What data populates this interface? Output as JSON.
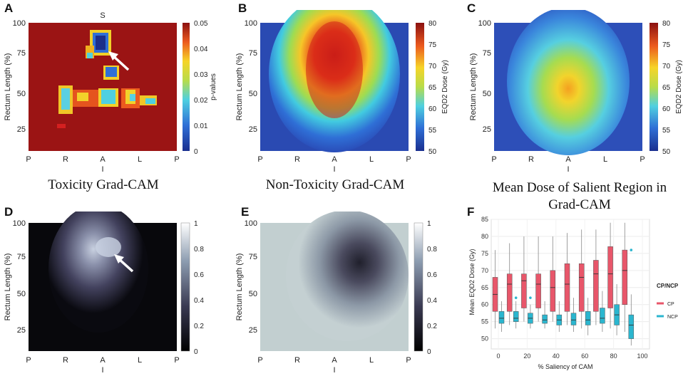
{
  "panels": {
    "A": {
      "label": "A",
      "caption": "Toxicity Grad-CAM",
      "cbar_title": "p-values",
      "cbar_ticks": [
        "0.05",
        "0.04",
        "0.03",
        "0.02",
        "0.01",
        "0"
      ]
    },
    "B": {
      "label": "B",
      "caption": "Non-Toxicity Grad-CAM",
      "cbar_title": "EQD2 Dose (Gy)",
      "cbar_ticks": [
        "80",
        "75",
        "70",
        "65",
        "60",
        "55",
        "50"
      ]
    },
    "C": {
      "label": "C",
      "caption_line1": "Mean Dose of Salient Region in",
      "caption_line2": "Grad-CAM",
      "cbar_title": "EQD2 Dose (Gy)",
      "cbar_ticks": [
        "80",
        "75",
        "70",
        "65",
        "60",
        "55",
        "50"
      ]
    },
    "D": {
      "label": "D",
      "cbar_ticks": [
        "1",
        "0.8",
        "0.6",
        "0.4",
        "0.2",
        "0"
      ]
    },
    "E": {
      "label": "E",
      "cbar_ticks": [
        "1",
        "0.8",
        "0.6",
        "0.4",
        "0.2",
        "0"
      ]
    },
    "F": {
      "label": "F"
    }
  },
  "axes": {
    "top_label": "S",
    "bottom_label": "I",
    "ylabel": "Rectum Length (%)",
    "yticks": [
      "100",
      "75",
      "50",
      "25"
    ],
    "xticks": [
      "P",
      "R",
      "A",
      "L",
      "P"
    ]
  },
  "chart_data": {
    "type": "box",
    "title": "",
    "xlabel": "% Saliency of CAM",
    "ylabel": "Mean EQD2 Dose (Gy)",
    "ylim": [
      47,
      85
    ],
    "xticks": [
      "0",
      "20",
      "40",
      "60",
      "80",
      "100"
    ],
    "yticks": [
      "50",
      "55",
      "60",
      "65",
      "70",
      "75",
      "80",
      "85"
    ],
    "legend_title": "CP/NCP",
    "legend_position": "right",
    "categories": [
      "0",
      "10",
      "20",
      "30",
      "40",
      "50",
      "60",
      "70",
      "80",
      "90",
      "100"
    ],
    "series": [
      {
        "name": "CP",
        "color": "#e8566a",
        "boxes": [
          {
            "whislo": 53,
            "q1": 58,
            "med": 63,
            "q3": 68,
            "whishi": 76
          },
          {
            "whislo": 54,
            "q1": 58,
            "med": 66,
            "q3": 69,
            "whishi": 78
          },
          {
            "whislo": 55,
            "q1": 59,
            "med": 67,
            "q3": 69,
            "whishi": 80
          },
          {
            "whislo": 55,
            "q1": 59,
            "med": 66,
            "q3": 69,
            "whishi": 80
          },
          {
            "whislo": 55,
            "q1": 58,
            "med": 65,
            "q3": 70,
            "whishi": 80
          },
          {
            "whislo": 54,
            "q1": 58,
            "med": 66,
            "q3": 72,
            "whishi": 81
          },
          {
            "whislo": 53,
            "q1": 58,
            "med": 68,
            "q3": 72,
            "whishi": 82
          },
          {
            "whislo": 54,
            "q1": 58,
            "med": 69,
            "q3": 73,
            "whishi": 82
          },
          {
            "whislo": 53,
            "q1": 59,
            "med": 69,
            "q3": 77,
            "whishi": 84
          },
          {
            "whislo": 52,
            "q1": 60,
            "med": 70,
            "q3": 76,
            "whishi": 84
          }
        ]
      },
      {
        "name": "NCP",
        "color": "#2bb6cf",
        "boxes": [
          {
            "whislo": 52,
            "q1": 54.5,
            "med": 56,
            "q3": 58,
            "whishi": 61
          },
          {
            "whislo": 53,
            "q1": 55,
            "med": 56,
            "q3": 58,
            "whishi": 61,
            "outlier": 62
          },
          {
            "whislo": 53,
            "q1": 54.5,
            "med": 56,
            "q3": 57.5,
            "whishi": 60,
            "outlier": 62
          },
          {
            "whislo": 53,
            "q1": 54.5,
            "med": 55.5,
            "q3": 57,
            "whishi": 61
          },
          {
            "whislo": 52,
            "q1": 54,
            "med": 55.5,
            "q3": 57,
            "whishi": 61
          },
          {
            "whislo": 52,
            "q1": 54,
            "med": 55.5,
            "q3": 57.5,
            "whishi": 62
          },
          {
            "whislo": 51,
            "q1": 54,
            "med": 55.5,
            "q3": 58,
            "whishi": 62
          },
          {
            "whislo": 52,
            "q1": 54.5,
            "med": 56,
            "q3": 59,
            "whishi": 64
          },
          {
            "whislo": 51,
            "q1": 54,
            "med": 57,
            "q3": 60,
            "whishi": 66
          },
          {
            "whislo": 48,
            "q1": 50,
            "med": 54,
            "q3": 57,
            "whishi": 63,
            "outlier": 76
          }
        ]
      }
    ]
  }
}
